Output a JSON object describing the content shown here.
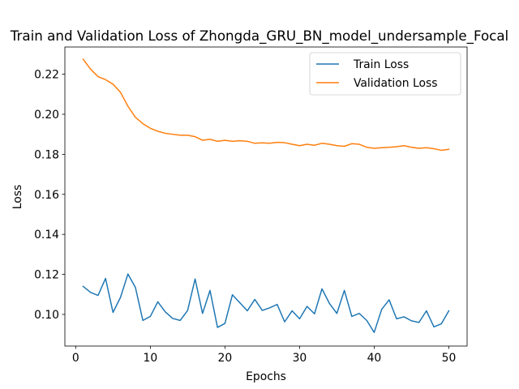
{
  "chart_data": {
    "type": "line",
    "title": "Train and Validation Loss of Zhongda_GRU_BN_model_undersample_Focal",
    "xlabel": "Epochs",
    "ylabel": "Loss",
    "xlim": [
      -1.45,
      52.45
    ],
    "ylim": [
      0.0842,
      0.2336
    ],
    "xticks": [
      0,
      10,
      20,
      30,
      40,
      50
    ],
    "xtick_labels": [
      "0",
      "10",
      "20",
      "30",
      "40",
      "50"
    ],
    "yticks": [
      0.1,
      0.12,
      0.14,
      0.16,
      0.18,
      0.2,
      0.22
    ],
    "ytick_labels": [
      "0.10",
      "0.12",
      "0.14",
      "0.16",
      "0.18",
      "0.20",
      "0.22"
    ],
    "legend_position": "top-right",
    "x": [
      1,
      2,
      3,
      4,
      5,
      6,
      7,
      8,
      9,
      10,
      11,
      12,
      13,
      14,
      15,
      16,
      17,
      18,
      19,
      20,
      21,
      22,
      23,
      24,
      25,
      26,
      27,
      28,
      29,
      30,
      31,
      32,
      33,
      34,
      35,
      36,
      37,
      38,
      39,
      40,
      41,
      42,
      43,
      44,
      45,
      46,
      47,
      48,
      49,
      50
    ],
    "series": [
      {
        "name": "Train Loss",
        "color": "#1f77b4",
        "values": [
          0.114,
          0.111,
          0.1095,
          0.118,
          0.101,
          0.1085,
          0.1202,
          0.1135,
          0.097,
          0.099,
          0.1063,
          0.1013,
          0.098,
          0.097,
          0.102,
          0.1177,
          0.1005,
          0.112,
          0.0935,
          0.0955,
          0.1098,
          0.1058,
          0.1018,
          0.1075,
          0.102,
          0.1033,
          0.105,
          0.0963,
          0.1018,
          0.0978,
          0.104,
          0.1003,
          0.1128,
          0.1055,
          0.1005,
          0.112,
          0.099,
          0.1005,
          0.097,
          0.091,
          0.1025,
          0.1073,
          0.0978,
          0.0988,
          0.0968,
          0.096,
          0.1018,
          0.0938,
          0.0953,
          0.1018
        ]
      },
      {
        "name": "Validation Loss",
        "color": "#ff7f0e",
        "values": [
          0.2275,
          0.2225,
          0.2188,
          0.2173,
          0.215,
          0.211,
          0.204,
          0.1985,
          0.1953,
          0.193,
          0.1915,
          0.1905,
          0.19,
          0.1895,
          0.1895,
          0.1888,
          0.187,
          0.1875,
          0.1865,
          0.187,
          0.1865,
          0.1868,
          0.1865,
          0.1855,
          0.1857,
          0.1855,
          0.186,
          0.1858,
          0.185,
          0.1843,
          0.185,
          0.1845,
          0.1855,
          0.185,
          0.1843,
          0.184,
          0.1853,
          0.185,
          0.1835,
          0.183,
          0.1833,
          0.1835,
          0.1838,
          0.1843,
          0.1835,
          0.183,
          0.1833,
          0.1828,
          0.182,
          0.1825
        ]
      }
    ]
  }
}
